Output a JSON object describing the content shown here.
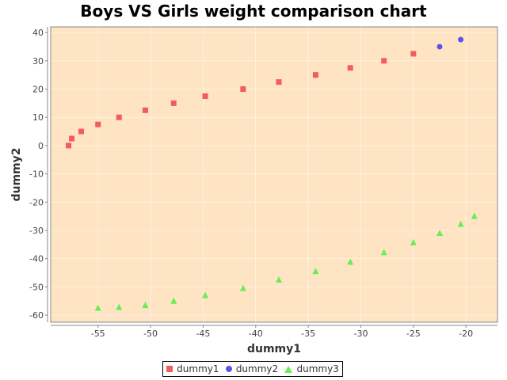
{
  "chart_data": {
    "type": "scatter",
    "title": "Boys VS Girls weight comparison chart",
    "xlabel": "dummy1",
    "ylabel": "dummy2",
    "xlim": [
      -59.5,
      -17
    ],
    "ylim": [
      -62.5,
      42
    ],
    "xticks": [
      -55,
      -50,
      -45,
      -40,
      -35,
      -30,
      -25,
      -20
    ],
    "yticks": [
      40,
      30,
      20,
      10,
      0,
      -10,
      -20,
      -30,
      -40,
      -50,
      -60
    ],
    "grid": true,
    "legend_position": "bottom-center",
    "plot_background": "#FFE4C4",
    "series": [
      {
        "name": "dummy1",
        "marker": "square",
        "color": "#F25C5C",
        "points": [
          [
            -57.8,
            0
          ],
          [
            -57.5,
            2.5
          ],
          [
            -56.6,
            5
          ],
          [
            -55,
            7.5
          ],
          [
            -53,
            10
          ],
          [
            -50.5,
            12.5
          ],
          [
            -47.8,
            15
          ],
          [
            -44.8,
            17.5
          ],
          [
            -41.2,
            20
          ],
          [
            -37.8,
            22.5
          ],
          [
            -34.3,
            25
          ],
          [
            -31,
            27.5
          ],
          [
            -27.8,
            30
          ],
          [
            -25,
            32.5
          ]
        ]
      },
      {
        "name": "dummy2",
        "marker": "circle",
        "color": "#5555EE",
        "points": [
          [
            -22.5,
            35
          ],
          [
            -20.5,
            37.5
          ]
        ]
      },
      {
        "name": "dummy3",
        "marker": "triangle",
        "color": "#66EE55",
        "points": [
          [
            -55,
            -57.5
          ],
          [
            -53,
            -57.2
          ],
          [
            -50.5,
            -56.5
          ],
          [
            -47.8,
            -55
          ],
          [
            -44.8,
            -53
          ],
          [
            -41.2,
            -50.5
          ],
          [
            -37.8,
            -47.5
          ],
          [
            -34.3,
            -44.5
          ],
          [
            -31,
            -41.2
          ],
          [
            -27.8,
            -37.8
          ],
          [
            -25,
            -34.3
          ],
          [
            -22.5,
            -31
          ],
          [
            -20.5,
            -27.8
          ],
          [
            -19.2,
            -25
          ]
        ]
      }
    ]
  }
}
